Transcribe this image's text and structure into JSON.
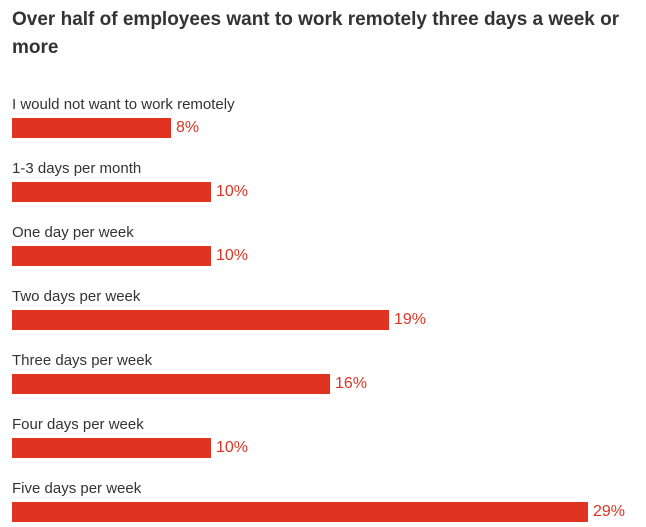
{
  "colors": {
    "bar": "#e03322",
    "value_text": "#e03322",
    "title_text": "#333333",
    "label_text": "#333333"
  },
  "chart_data": {
    "type": "bar",
    "orientation": "horizontal",
    "title": "Over half of employees want to work remotely three days a week or more",
    "categories": [
      "I would not want to work remotely",
      "1-3 days per month",
      "One day per week",
      "Two days per week",
      "Three days per week",
      "Four days per week",
      "Five days per week"
    ],
    "values": [
      8,
      10,
      10,
      19,
      16,
      10,
      29
    ],
    "value_labels": [
      "8%",
      "10%",
      "10%",
      "19%",
      "16%",
      "10%",
      "29%"
    ],
    "unit": "%",
    "xlim": [
      0,
      29
    ],
    "grid": false,
    "legend": "none"
  }
}
